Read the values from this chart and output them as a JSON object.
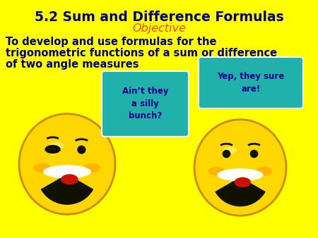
{
  "bg_color": "#FFFF00",
  "title": "5.2 Sum and Difference Formulas",
  "title_color": "#00008B",
  "objective_label": "Objective",
  "objective_color": "#FF4500",
  "body_line1": "To develop and use formulas for the",
  "body_line2": "trigonometric functions of a sum or difference",
  "body_line3": "of two angle measures",
  "body_color": "#00008B",
  "bubble1_text": "Ain’t they\na silly\nbunch?",
  "bubble1_color": "#20B2AA",
  "bubble2_text": "Yep, they sure\nare!",
  "bubble2_color": "#20B2AA",
  "smiley_color": "#FFD700",
  "smiley_edge": "#CC8800",
  "text_bubble_text_color": "#00008B"
}
